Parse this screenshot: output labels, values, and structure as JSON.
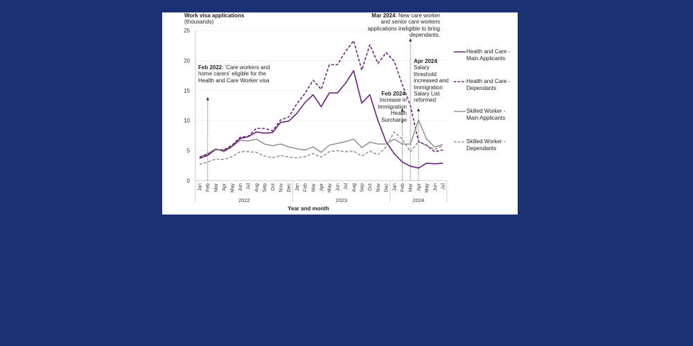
{
  "chart_data": {
    "type": "line",
    "ylabel": "Work visa applications",
    "ylabel_unit": "(thousands)",
    "xlabel": "Year and month",
    "ylim": [
      0,
      25
    ],
    "yticks": [
      0,
      5,
      10,
      15,
      20,
      25
    ],
    "grid": "horizontal",
    "legend_position": "right",
    "months": [
      "Jan",
      "Feb",
      "Mar",
      "Apr",
      "May",
      "Jun",
      "Jul",
      "Aug",
      "Sep",
      "Oct",
      "Nov",
      "Dec",
      "Jan",
      "Feb",
      "Mar",
      "Apr",
      "May",
      "Jun",
      "Jul",
      "Aug",
      "Sep",
      "Oct",
      "Nov",
      "Dec",
      "Jan",
      "Feb",
      "Mar",
      "Apr",
      "May",
      "Jun",
      "Jul"
    ],
    "years": [
      {
        "label": "2022",
        "months": 12
      },
      {
        "label": "2023",
        "months": 12
      },
      {
        "label": "2024",
        "months": 7
      }
    ],
    "series": [
      {
        "name": "Health and Care - Main Applicants",
        "color": "#6a1f7a",
        "dash": false,
        "values": [
          3.7,
          4.2,
          5.2,
          5.0,
          5.7,
          7.0,
          7.3,
          8.1,
          7.9,
          8.0,
          9.7,
          9.9,
          11.2,
          13.0,
          14.3,
          12.3,
          14.6,
          14.6,
          16.2,
          18.3,
          12.9,
          14.3,
          10.0,
          6.5,
          4.5,
          3.1,
          2.4,
          2.1,
          2.9,
          2.8,
          2.9
        ]
      },
      {
        "name": "Health and Care - Dependants",
        "color": "#6a1f7a",
        "dash": true,
        "values": [
          3.9,
          4.4,
          5.2,
          5.1,
          5.9,
          7.2,
          7.4,
          8.7,
          8.7,
          8.3,
          10.1,
          10.6,
          12.8,
          14.5,
          16.7,
          15.2,
          19.3,
          19.3,
          21.5,
          23.3,
          18.4,
          22.6,
          19.5,
          21.3,
          19.9,
          16.0,
          12.5,
          6.5,
          5.9,
          4.8,
          5.1
        ]
      },
      {
        "name": "Skilled Worker - Main Applicants",
        "color": "#7f7f7f",
        "dash": false,
        "values": [
          4.0,
          4.5,
          5.3,
          4.8,
          5.6,
          6.7,
          6.6,
          6.9,
          6.1,
          5.8,
          6.1,
          5.6,
          5.3,
          5.1,
          5.6,
          4.7,
          5.9,
          6.2,
          6.5,
          6.9,
          5.5,
          6.4,
          6.1,
          6.1,
          6.9,
          6.1,
          6.1,
          10.1,
          6.9,
          5.6,
          6.0
        ]
      },
      {
        "name": "Skilled Worker - Dependants",
        "color": "#7f7f7f",
        "dash": true,
        "values": [
          2.7,
          3.1,
          3.6,
          3.5,
          4.0,
          4.8,
          4.8,
          4.7,
          4.1,
          3.8,
          4.2,
          3.9,
          3.8,
          4.0,
          4.5,
          3.9,
          4.8,
          5.0,
          4.8,
          4.9,
          4.1,
          4.9,
          4.3,
          5.6,
          8.1,
          6.9,
          4.8,
          6.5,
          5.8,
          5.2,
          5.8
        ]
      }
    ],
    "annotations": [
      {
        "date": "Feb 2022",
        "text": ": 'Care workers and home carers' eligible for the Health and Care Worker visa"
      },
      {
        "date": "Feb 2024",
        "text": ": Increase in Immigration Health Surcharge"
      },
      {
        "date": "Mar 2024",
        "text": ": New care worker and senior care workers applications ineligible to bring dependants."
      },
      {
        "date": "Apr 2024",
        "text": ": Salary threshold increased and Immigration Salary List reformed"
      }
    ]
  }
}
